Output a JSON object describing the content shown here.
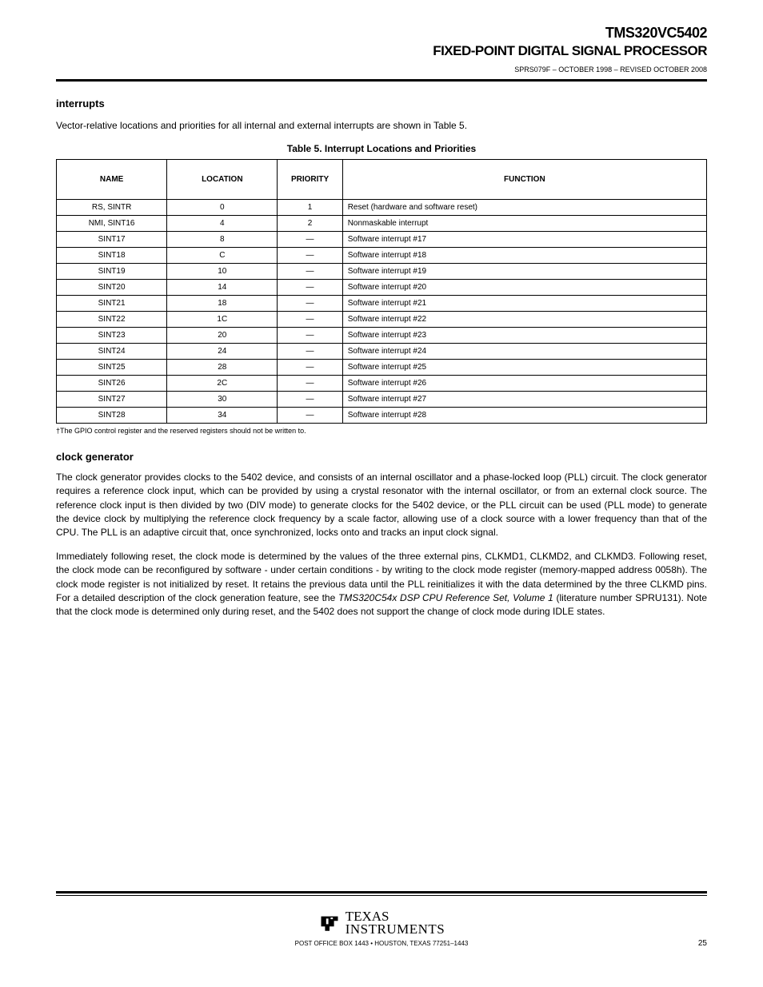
{
  "header": {
    "title": "TMS320VC5402",
    "subtitle": "FIXED-POINT DIGITAL SIGNAL PROCESSOR",
    "doc_id": "SPRS079F – OCTOBER 1998 – REVISED OCTOBER 2008"
  },
  "section": {
    "title": "interrupts",
    "para1": "Vector-relative locations and priorities for all internal and external interrupts are shown in Table 5.",
    "table_caption": "Table 5. Interrupt Locations and Priorities",
    "columns": [
      "NAME",
      "LOCATION",
      "PRIORITY",
      "FUNCTION"
    ],
    "rows": [
      [
        "RS, SINTR",
        "0",
        "1",
        "Reset (hardware and software reset)"
      ],
      [
        "NMI, SINT16",
        "4",
        "2",
        "Nonmaskable interrupt"
      ],
      [
        "SINT17",
        "8",
        "—",
        "Software interrupt #17"
      ],
      [
        "SINT18",
        "C",
        "—",
        "Software interrupt #18"
      ],
      [
        "SINT19",
        "10",
        "—",
        "Software interrupt #19"
      ],
      [
        "SINT20",
        "14",
        "—",
        "Software interrupt #20"
      ],
      [
        "SINT21",
        "18",
        "—",
        "Software interrupt #21"
      ],
      [
        "SINT22",
        "1C",
        "—",
        "Software interrupt #22"
      ],
      [
        "SINT23",
        "20",
        "—",
        "Software interrupt #23"
      ],
      [
        "SINT24",
        "24",
        "—",
        "Software interrupt #24"
      ],
      [
        "SINT25",
        "28",
        "—",
        "Software interrupt #25"
      ],
      [
        "SINT26",
        "2C",
        "—",
        "Software interrupt #26"
      ],
      [
        "SINT27",
        "30",
        "—",
        "Software interrupt #27"
      ],
      [
        "SINT28",
        "34",
        "—",
        "Software interrupt #28"
      ]
    ],
    "note_label": "†",
    "note_text": "The GPIO control register and the reserved registers should not be written to."
  },
  "clock_section": {
    "title": "clock generator",
    "para": "The clock generator provides clocks to the 5402 device, and consists of an internal oscillator and a phase-locked loop (PLL) circuit. The clock generator requires a reference clock input, which can be provided by using a crystal resonator with the internal oscillator, or from an external clock source. The reference clock input is then divided by two (DIV mode) to generate clocks for the 5402 device, or the PLL circuit can be used (PLL mode) to generate the device clock by multiplying the reference clock frequency by a scale factor, allowing use of a clock source with a lower frequency than that of the CPU. The PLL is an adaptive circuit that, once synchronized, locks onto and tracks an input clock signal.",
    "para2_a": "Immediately following reset, the clock mode is determined by the values of the three external pins, CLKMD1, CLKMD2, and CLKMD3. Following reset, the clock mode can be reconfigured by software - under certain conditions - by writing to the clock mode register (memory-mapped address 0058h). The clock mode register is not initialized by reset. It retains the previous data until the PLL reinitializes it with the data determined by the three CLKMD pins. For a detailed description of the clock generation feature, see the ",
    "para2_i": "TMS320C54x DSP CPU Reference Set, Volume 1",
    "para2_b": " (literature number SPRU131). Note that the clock mode is determined only during reset, and the 5402 does not support the change of clock mode during IDLE states."
  },
  "footer": {
    "url_label": "POST OFFICE BOX 1443",
    "url_right": "HOUSTON, TEXAS 77251–1443",
    "page": "25",
    "ti_line1": "TEXAS",
    "ti_line2": "INSTRUMENTS"
  }
}
